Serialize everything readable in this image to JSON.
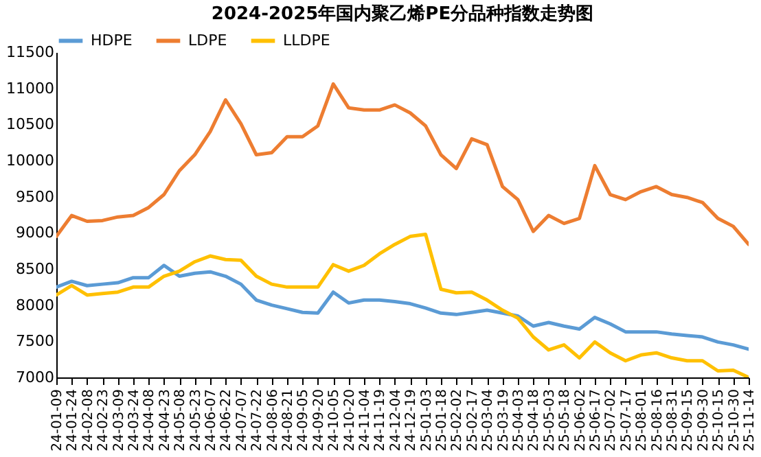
{
  "chart_data": {
    "type": "line",
    "title": "2024-2025年国内聚乙烯PE分品种指数走势图",
    "categories": [
      "24-01-09",
      "24-01-24",
      "24-02-08",
      "24-02-23",
      "24-03-09",
      "24-03-24",
      "24-04-08",
      "24-04-23",
      "24-05-08",
      "24-05-23",
      "24-06-07",
      "24-06-22",
      "24-07-07",
      "24-07-22",
      "24-08-06",
      "24-08-21",
      "24-09-05",
      "24-09-20",
      "24-10-05",
      "24-10-20",
      "24-11-04",
      "24-11-19",
      "24-12-04",
      "24-12-19",
      "25-01-03",
      "25-01-18",
      "25-02-02",
      "25-02-17",
      "25-03-04",
      "25-03-19",
      "25-04-03",
      "25-04-18",
      "25-05-03",
      "25-05-18",
      "25-06-02",
      "25-06-17",
      "25-07-02",
      "25-07-17",
      "25-08-01",
      "25-08-16",
      "25-08-31",
      "25-09-15",
      "25-09-30",
      "25-10-15",
      "25-10-30",
      "25-11-14"
    ],
    "series": [
      {
        "name": "HDPE",
        "color": "#5b9bd5",
        "values": [
          8250,
          8330,
          8270,
          8290,
          8310,
          8380,
          8380,
          8550,
          8400,
          8440,
          8460,
          8400,
          8290,
          8070,
          8000,
          7950,
          7900,
          7890,
          8180,
          8030,
          8070,
          8070,
          8050,
          8020,
          7960,
          7890,
          7870,
          7900,
          7930,
          7890,
          7850,
          7710,
          7760,
          7710,
          7670,
          7830,
          7740,
          7630,
          7630,
          7630,
          7600,
          7580,
          7560,
          7490,
          7450,
          7390
        ]
      },
      {
        "name": "LDPE",
        "color": "#ed7d31",
        "values": [
          8950,
          9240,
          9160,
          9170,
          9220,
          9240,
          9350,
          9530,
          9860,
          10080,
          10400,
          10840,
          10510,
          10080,
          10110,
          10330,
          10330,
          10480,
          11060,
          10730,
          10700,
          10700,
          10770,
          10660,
          10480,
          10080,
          9890,
          10300,
          10220,
          9640,
          9460,
          9020,
          9240,
          9130,
          9200,
          9930,
          9530,
          9460,
          9570,
          9640,
          9530,
          9490,
          9420,
          9200,
          9090,
          8840
        ]
      },
      {
        "name": "LLDPE",
        "color": "#ffc000",
        "values": [
          8140,
          8270,
          8140,
          8160,
          8180,
          8250,
          8250,
          8400,
          8470,
          8600,
          8680,
          8630,
          8620,
          8400,
          8290,
          8250,
          8250,
          8250,
          8560,
          8470,
          8550,
          8710,
          8840,
          8950,
          8980,
          8220,
          8170,
          8180,
          8070,
          7930,
          7820,
          7560,
          7380,
          7450,
          7270,
          7490,
          7340,
          7230,
          7310,
          7340,
          7270,
          7230,
          7230,
          7090,
          7100,
          7000
        ]
      }
    ],
    "ylim": [
      7000,
      11500
    ],
    "yticks": [
      7000,
      7500,
      8000,
      8500,
      9000,
      9500,
      10000,
      10500,
      11000,
      11500
    ],
    "grid": false,
    "legend": "top",
    "marker": "none",
    "line_style": "solid"
  }
}
